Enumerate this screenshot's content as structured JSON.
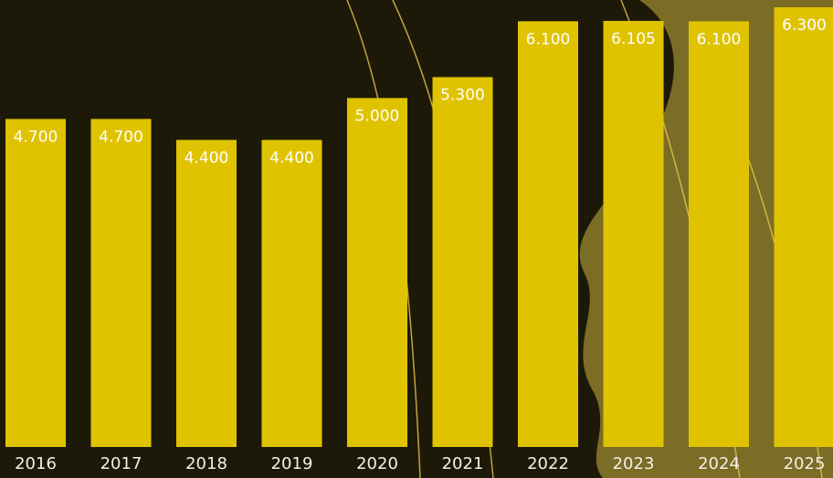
{
  "chart_data": {
    "type": "bar",
    "categories": [
      "2016",
      "2017",
      "2018",
      "2019",
      "2020",
      "2021",
      "2022",
      "2023",
      "2024",
      "2025"
    ],
    "values": [
      4700,
      4700,
      4400,
      4400,
      5000,
      5300,
      6100,
      6105,
      6100,
      6300
    ],
    "value_labels": [
      "4.700",
      "4.700",
      "4.400",
      "4.400",
      "5.000",
      "5.300",
      "6.100",
      "6.105",
      "6.100",
      "6.300"
    ],
    "color": "#dfc300"
  }
}
